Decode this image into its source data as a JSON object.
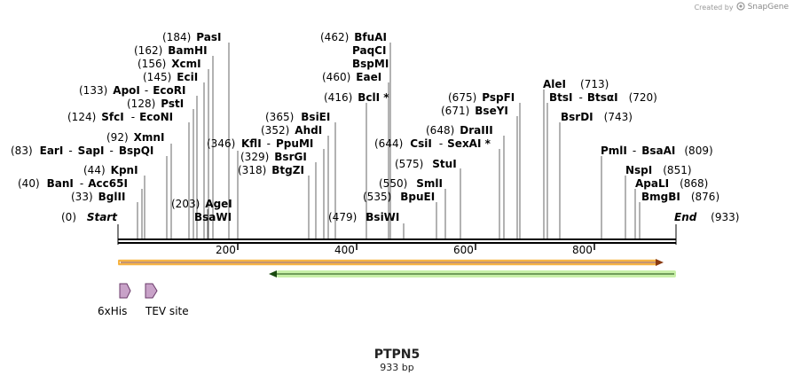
{
  "credit": {
    "text": "Created by",
    "brand": "SnapGene"
  },
  "sequence": {
    "name": "PTPN5",
    "length_label": "933 bp",
    "length": 933
  },
  "ends": {
    "start": {
      "num": "(0)",
      "name": "Start"
    },
    "end": {
      "num": "(933)",
      "name": "End"
    }
  },
  "ticks": [
    "200",
    "400",
    "600",
    "800"
  ],
  "sites": [
    {
      "num": "(184)",
      "name": "PasI"
    },
    {
      "num": "(162)",
      "name": "BamHI"
    },
    {
      "num": "(156)",
      "name": "XcmI"
    },
    {
      "num": "(145)",
      "name": "EciI"
    },
    {
      "num": "(133)",
      "name": "ApoI",
      "name2": "EcoRI"
    },
    {
      "num": "(128)",
      "name": "PstI"
    },
    {
      "num": "(124)",
      "name": "SfcI",
      "name2": "EcoNI"
    },
    {
      "num": "(92)",
      "name": "XmnI"
    },
    {
      "num": "(83)",
      "name": "EarI",
      "name2": "SapI",
      "name3": "BspQI"
    },
    {
      "num": "(44)",
      "name": "KpnI"
    },
    {
      "num": "(40)",
      "name": "BanI",
      "name2": "Acc65I"
    },
    {
      "num": "(33)",
      "name": "BglII"
    },
    {
      "num": "(203)",
      "name": "AgeI",
      "name2": "BsaWI"
    },
    {
      "num": "(346)",
      "name": ""
    },
    {
      "num": "(462)",
      "name": "BfuAI",
      "name2": "PaqCI",
      "name3": "BspMI"
    },
    {
      "num": "(460)",
      "name": "EaeI"
    },
    {
      "num": "(416)",
      "name": "BclI *"
    },
    {
      "num": "(365)",
      "name": "BsiEI"
    },
    {
      "num": "(352)",
      "name": "AhdI"
    },
    {
      "num": "",
      "name": "KflI",
      "name2": "PpuMI"
    },
    {
      "num": "(329)",
      "name": "BsrGI"
    },
    {
      "num": "(318)",
      "name": "BtgZI"
    },
    {
      "num": "(479)",
      "name": "BsiWI"
    },
    {
      "num": "(675)",
      "name": "PspFI"
    },
    {
      "num": "(671)",
      "name": "BseYI"
    },
    {
      "num": "(648)",
      "name": "DraIII"
    },
    {
      "num": "(644)",
      "name": "CsiI",
      "name2": "SexAI *"
    },
    {
      "num": "(575)",
      "name": "StuI"
    },
    {
      "num": "(550)",
      "name": "SmlI"
    },
    {
      "num": "(535)",
      "name": "BpuEI"
    },
    {
      "num": "(713)",
      "name": "AleI"
    },
    {
      "num": "(720)",
      "name": "BtsI",
      "name2": "BtsαI"
    },
    {
      "num": "(743)",
      "name": "BsrDI"
    },
    {
      "num": "(809)",
      "name": "PmlI",
      "name2": "BsaAI"
    },
    {
      "num": "(851)",
      "name": "NspI"
    },
    {
      "num": "(868)",
      "name": "ApaLI"
    },
    {
      "num": "(876)",
      "name": "BmgBI"
    }
  ],
  "features": [
    {
      "name": "6xHis",
      "color": "#c8a2c8"
    },
    {
      "name": "TEV site",
      "color": "#c8a2c8"
    }
  ],
  "orfs": [
    {
      "name": "orf-forward",
      "color": "#f5a623"
    },
    {
      "name": "orf-reverse",
      "color": "#8fd35a"
    }
  ]
}
